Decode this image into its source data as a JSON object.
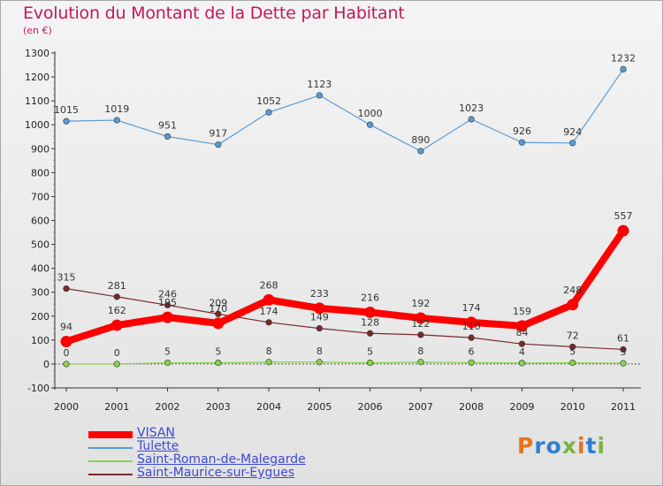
{
  "title": "Evolution du Montant de la Dette par Habitant",
  "subtitle": "(en €)",
  "logo": {
    "text": "Proxiti",
    "colors": [
      "#e8731a",
      "#2f7fd0",
      "#2f7fd0",
      "#7cb342",
      "#e8731a",
      "#2f7fd0",
      "#7cb342"
    ]
  },
  "chart_data": {
    "type": "line",
    "title": "Evolution du Montant de la Dette par Habitant",
    "subtitle": "(en €)",
    "xlabel": "",
    "ylabel": "",
    "x": [
      "2000",
      "2001",
      "2002",
      "2003",
      "2004",
      "2005",
      "2006",
      "2007",
      "2008",
      "2009",
      "2010",
      "2011"
    ],
    "ylim": [
      -100,
      1300
    ],
    "yticks": [
      "-100",
      "0",
      "100",
      "200",
      "300",
      "400",
      "500",
      "600",
      "700",
      "800",
      "900",
      "1000",
      "1100",
      "1200",
      "1300"
    ],
    "grid": false,
    "legend_position": "bottom-left",
    "series": [
      {
        "name": "VISAN",
        "color": "#ff0000",
        "values": [
          94,
          162,
          195,
          170,
          268,
          233,
          216,
          192,
          174,
          159,
          248,
          557
        ],
        "labels": [
          "94",
          "162",
          "195",
          "170",
          "268",
          "233",
          "216",
          "192",
          "174",
          "159",
          "248",
          "557"
        ]
      },
      {
        "name": "Tulette",
        "color": "#5a9bd3",
        "values": [
          1015,
          1019,
          951,
          917,
          1052,
          1123,
          1000,
          890,
          1023,
          926,
          924,
          1232
        ],
        "labels": [
          "1015",
          "1019",
          "951",
          "917",
          "1052",
          "1123",
          "1000",
          "890",
          "1023",
          "926",
          "924",
          "1232"
        ]
      },
      {
        "name": "Saint-Roman-de-Malegarde",
        "color": "#8ad24a",
        "values": [
          0,
          0,
          5,
          5,
          8,
          8,
          5,
          8,
          6,
          4,
          5,
          3
        ],
        "labels": [
          "0",
          "0",
          "5",
          "5",
          "8",
          "8",
          "5",
          "8",
          "6",
          "4",
          "5",
          "3"
        ]
      },
      {
        "name": "Saint-Maurice-sur-Eygues",
        "color": "#7a2a2a",
        "values": [
          315,
          281,
          246,
          209,
          174,
          149,
          128,
          122,
          110,
          84,
          72,
          61
        ],
        "labels": [
          "315",
          "281",
          "246",
          "209",
          "174",
          "149",
          "128",
          "122",
          "110",
          "84",
          "72",
          "61"
        ]
      }
    ]
  }
}
